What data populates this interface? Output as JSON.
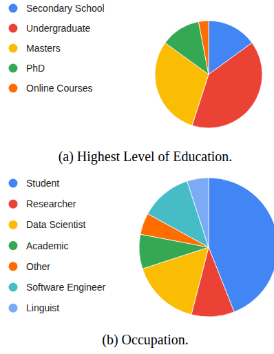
{
  "chart_data": [
    {
      "type": "pie",
      "title": "(a) Highest Level of Education.",
      "categories": [
        "Secondary School",
        "Undergraduate",
        "Masters",
        "PhD",
        "Online Courses"
      ],
      "values": [
        15,
        40,
        30,
        12,
        3
      ],
      "colors": [
        "#4285f4",
        "#ea4335",
        "#fbbc04",
        "#34a853",
        "#ff6d01"
      ],
      "legend": "left"
    },
    {
      "type": "pie",
      "title": "(b) Occupation.",
      "categories": [
        "Student",
        "Researcher",
        "Data Scientist",
        "Academic",
        "Other",
        "Software Engineer",
        "Linguist"
      ],
      "values": [
        44,
        10,
        16,
        8,
        5,
        12,
        5
      ],
      "colors": [
        "#4285f4",
        "#ea4335",
        "#fbbc04",
        "#34a853",
        "#ff6d01",
        "#46bdc6",
        "#7baaf7"
      ],
      "legend": "left"
    }
  ]
}
